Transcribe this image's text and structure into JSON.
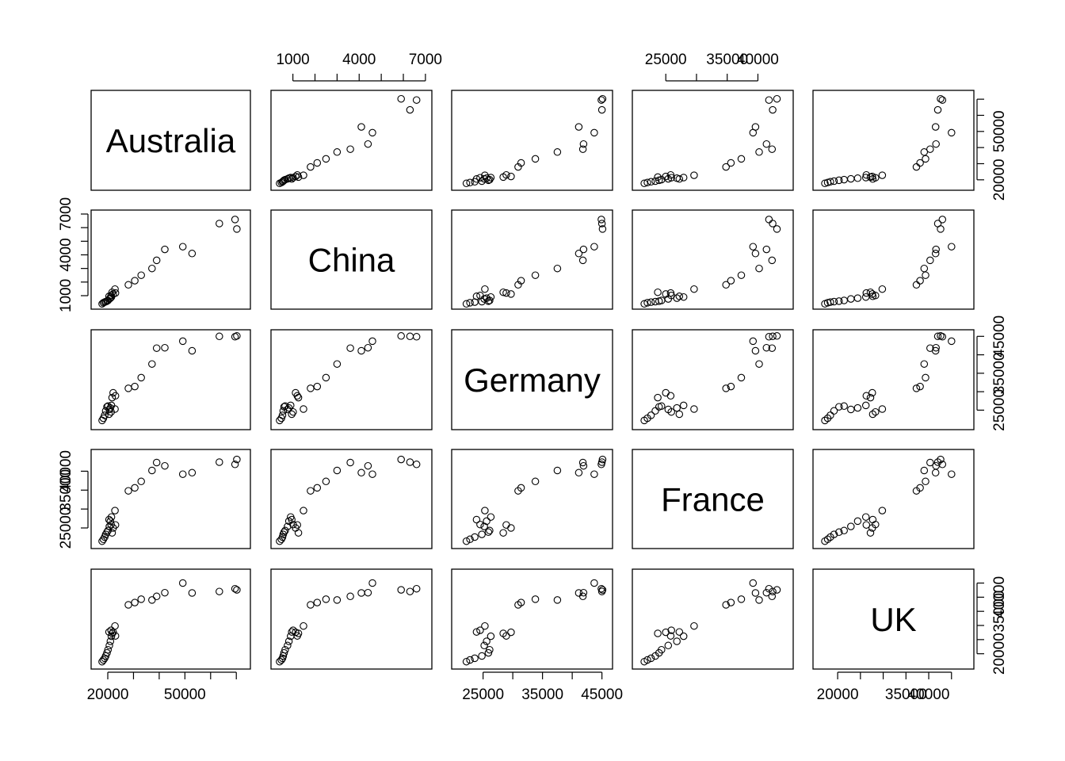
{
  "chart_data": {
    "type": "scatter",
    "title": "",
    "variables": [
      {
        "name": "Australia",
        "range": [
          16000,
          73000
        ],
        "ticks": [
          {
            "v": 20000,
            "label": "20000"
          },
          {
            "v": 30000,
            "label": ""
          },
          {
            "v": 40000,
            "label": ""
          },
          {
            "v": 50000,
            "label": "50000"
          },
          {
            "v": 60000,
            "label": ""
          },
          {
            "v": 70000,
            "label": ""
          }
        ]
      },
      {
        "name": "China",
        "range": [
          300,
          7000
        ],
        "ticks": [
          {
            "v": 1000,
            "label": "1000"
          },
          {
            "v": 2000,
            "label": ""
          },
          {
            "v": 3000,
            "label": ""
          },
          {
            "v": 4000,
            "label": "4000"
          },
          {
            "v": 5000,
            "label": ""
          },
          {
            "v": 6000,
            "label": ""
          },
          {
            "v": 7000,
            "label": "7000"
          }
        ]
      },
      {
        "name": "Germany",
        "range": [
          20800,
          45700
        ],
        "ticks": [
          {
            "v": 25000,
            "label": "25000"
          },
          {
            "v": 30000,
            "label": ""
          },
          {
            "v": 35000,
            "label": "35000"
          },
          {
            "v": 40000,
            "label": ""
          },
          {
            "v": 45000,
            "label": "45000"
          }
        ]
      },
      {
        "name": "France",
        "range": [
          20600,
          44700
        ],
        "ticks": [
          {
            "v": 25000,
            "label": "25000"
          },
          {
            "v": 30000,
            "label": ""
          },
          {
            "v": 35000,
            "label": "35000"
          },
          {
            "v": 40000,
            "label": "40000"
          }
        ]
      },
      {
        "name": "UK",
        "range": [
          16000,
          48500
        ],
        "ticks": [
          {
            "v": 20000,
            "label": "20000"
          },
          {
            "v": 25000,
            "label": ""
          },
          {
            "v": 30000,
            "label": ""
          },
          {
            "v": 35000,
            "label": "35000"
          },
          {
            "v": 40000,
            "label": "40000"
          },
          {
            "v": 45000,
            "label": ""
          }
        ]
      }
    ],
    "axes": {
      "bottom": [
        0,
        2,
        4
      ],
      "top": [
        1,
        3
      ],
      "left": [
        1,
        3
      ],
      "right": [
        0,
        2,
        4
      ]
    },
    "observations": [
      {
        "Australia": 17800,
        "China": 400,
        "Germany": 22200,
        "France": 21500,
        "UK": 17200
      },
      {
        "Australia": 18300,
        "China": 480,
        "Germany": 22800,
        "France": 22000,
        "UK": 17800
      },
      {
        "Australia": 18800,
        "China": 530,
        "Germany": 23600,
        "France": 22600,
        "UK": 18400
      },
      {
        "Australia": 19200,
        "China": 560,
        "Germany": 24800,
        "France": 23300,
        "UK": 19200
      },
      {
        "Australia": 19700,
        "China": 600,
        "Germany": 25900,
        "France": 23900,
        "UK": 20300
      },
      {
        "Australia": 20100,
        "China": 650,
        "Germany": 26100,
        "France": 24300,
        "UK": 21400
      },
      {
        "Australia": 20600,
        "China": 760,
        "Germany": 25200,
        "France": 25400,
        "UK": 22900
      },
      {
        "Australia": 21000,
        "China": 820,
        "Germany": 25600,
        "France": 26800,
        "UK": 24400
      },
      {
        "Australia": 21400,
        "China": 900,
        "Germany": 26300,
        "France": 27900,
        "UK": 26200
      },
      {
        "Australia": 20500,
        "China": 950,
        "Germany": 23900,
        "France": 27200,
        "UK": 27700
      },
      {
        "Australia": 21300,
        "China": 1010,
        "Germany": 24500,
        "France": 25900,
        "UK": 28300
      },
      {
        "Australia": 22100,
        "China": 1120,
        "Germany": 29700,
        "France": 25000,
        "UK": 27600
      },
      {
        "Australia": 23000,
        "China": 1200,
        "Germany": 28900,
        "France": 25800,
        "UK": 26300
      },
      {
        "Australia": 21700,
        "China": 1250,
        "Germany": 28400,
        "France": 23700,
        "UK": 27200
      },
      {
        "Australia": 22800,
        "China": 1480,
        "Germany": 25300,
        "France": 29600,
        "UK": 29800
      },
      {
        "Australia": 28000,
        "China": 1800,
        "Germany": 30900,
        "France": 34800,
        "UK": 37300
      },
      {
        "Australia": 30500,
        "China": 2100,
        "Germany": 31400,
        "France": 35600,
        "UK": 38100
      },
      {
        "Australia": 33000,
        "China": 2500,
        "Germany": 33800,
        "France": 37300,
        "UK": 39300
      },
      {
        "Australia": 37200,
        "China": 3000,
        "Germany": 37500,
        "France": 40200,
        "UK": 39000
      },
      {
        "Australia": 39000,
        "China": 3600,
        "Germany": 41800,
        "France": 42300,
        "UK": 40300
      },
      {
        "Australia": 42200,
        "China": 4400,
        "Germany": 41900,
        "France": 41400,
        "UK": 41600
      },
      {
        "Australia": 49200,
        "China": 4600,
        "Germany": 43700,
        "France": 39200,
        "UK": 45000
      },
      {
        "Australia": 52800,
        "China": 4100,
        "Germany": 41100,
        "France": 39600,
        "UK": 41500
      },
      {
        "Australia": 63400,
        "China": 6300,
        "Germany": 45000,
        "France": 42400,
        "UK": 42000
      },
      {
        "Australia": 69500,
        "China": 6600,
        "Germany": 44900,
        "France": 41800,
        "UK": 43000
      },
      {
        "Australia": 70200,
        "China": 5900,
        "Germany": 45100,
        "France": 43100,
        "UK": 42600
      }
    ],
    "xlabel": "",
    "ylabel": "",
    "grid": false,
    "legend": "none"
  }
}
